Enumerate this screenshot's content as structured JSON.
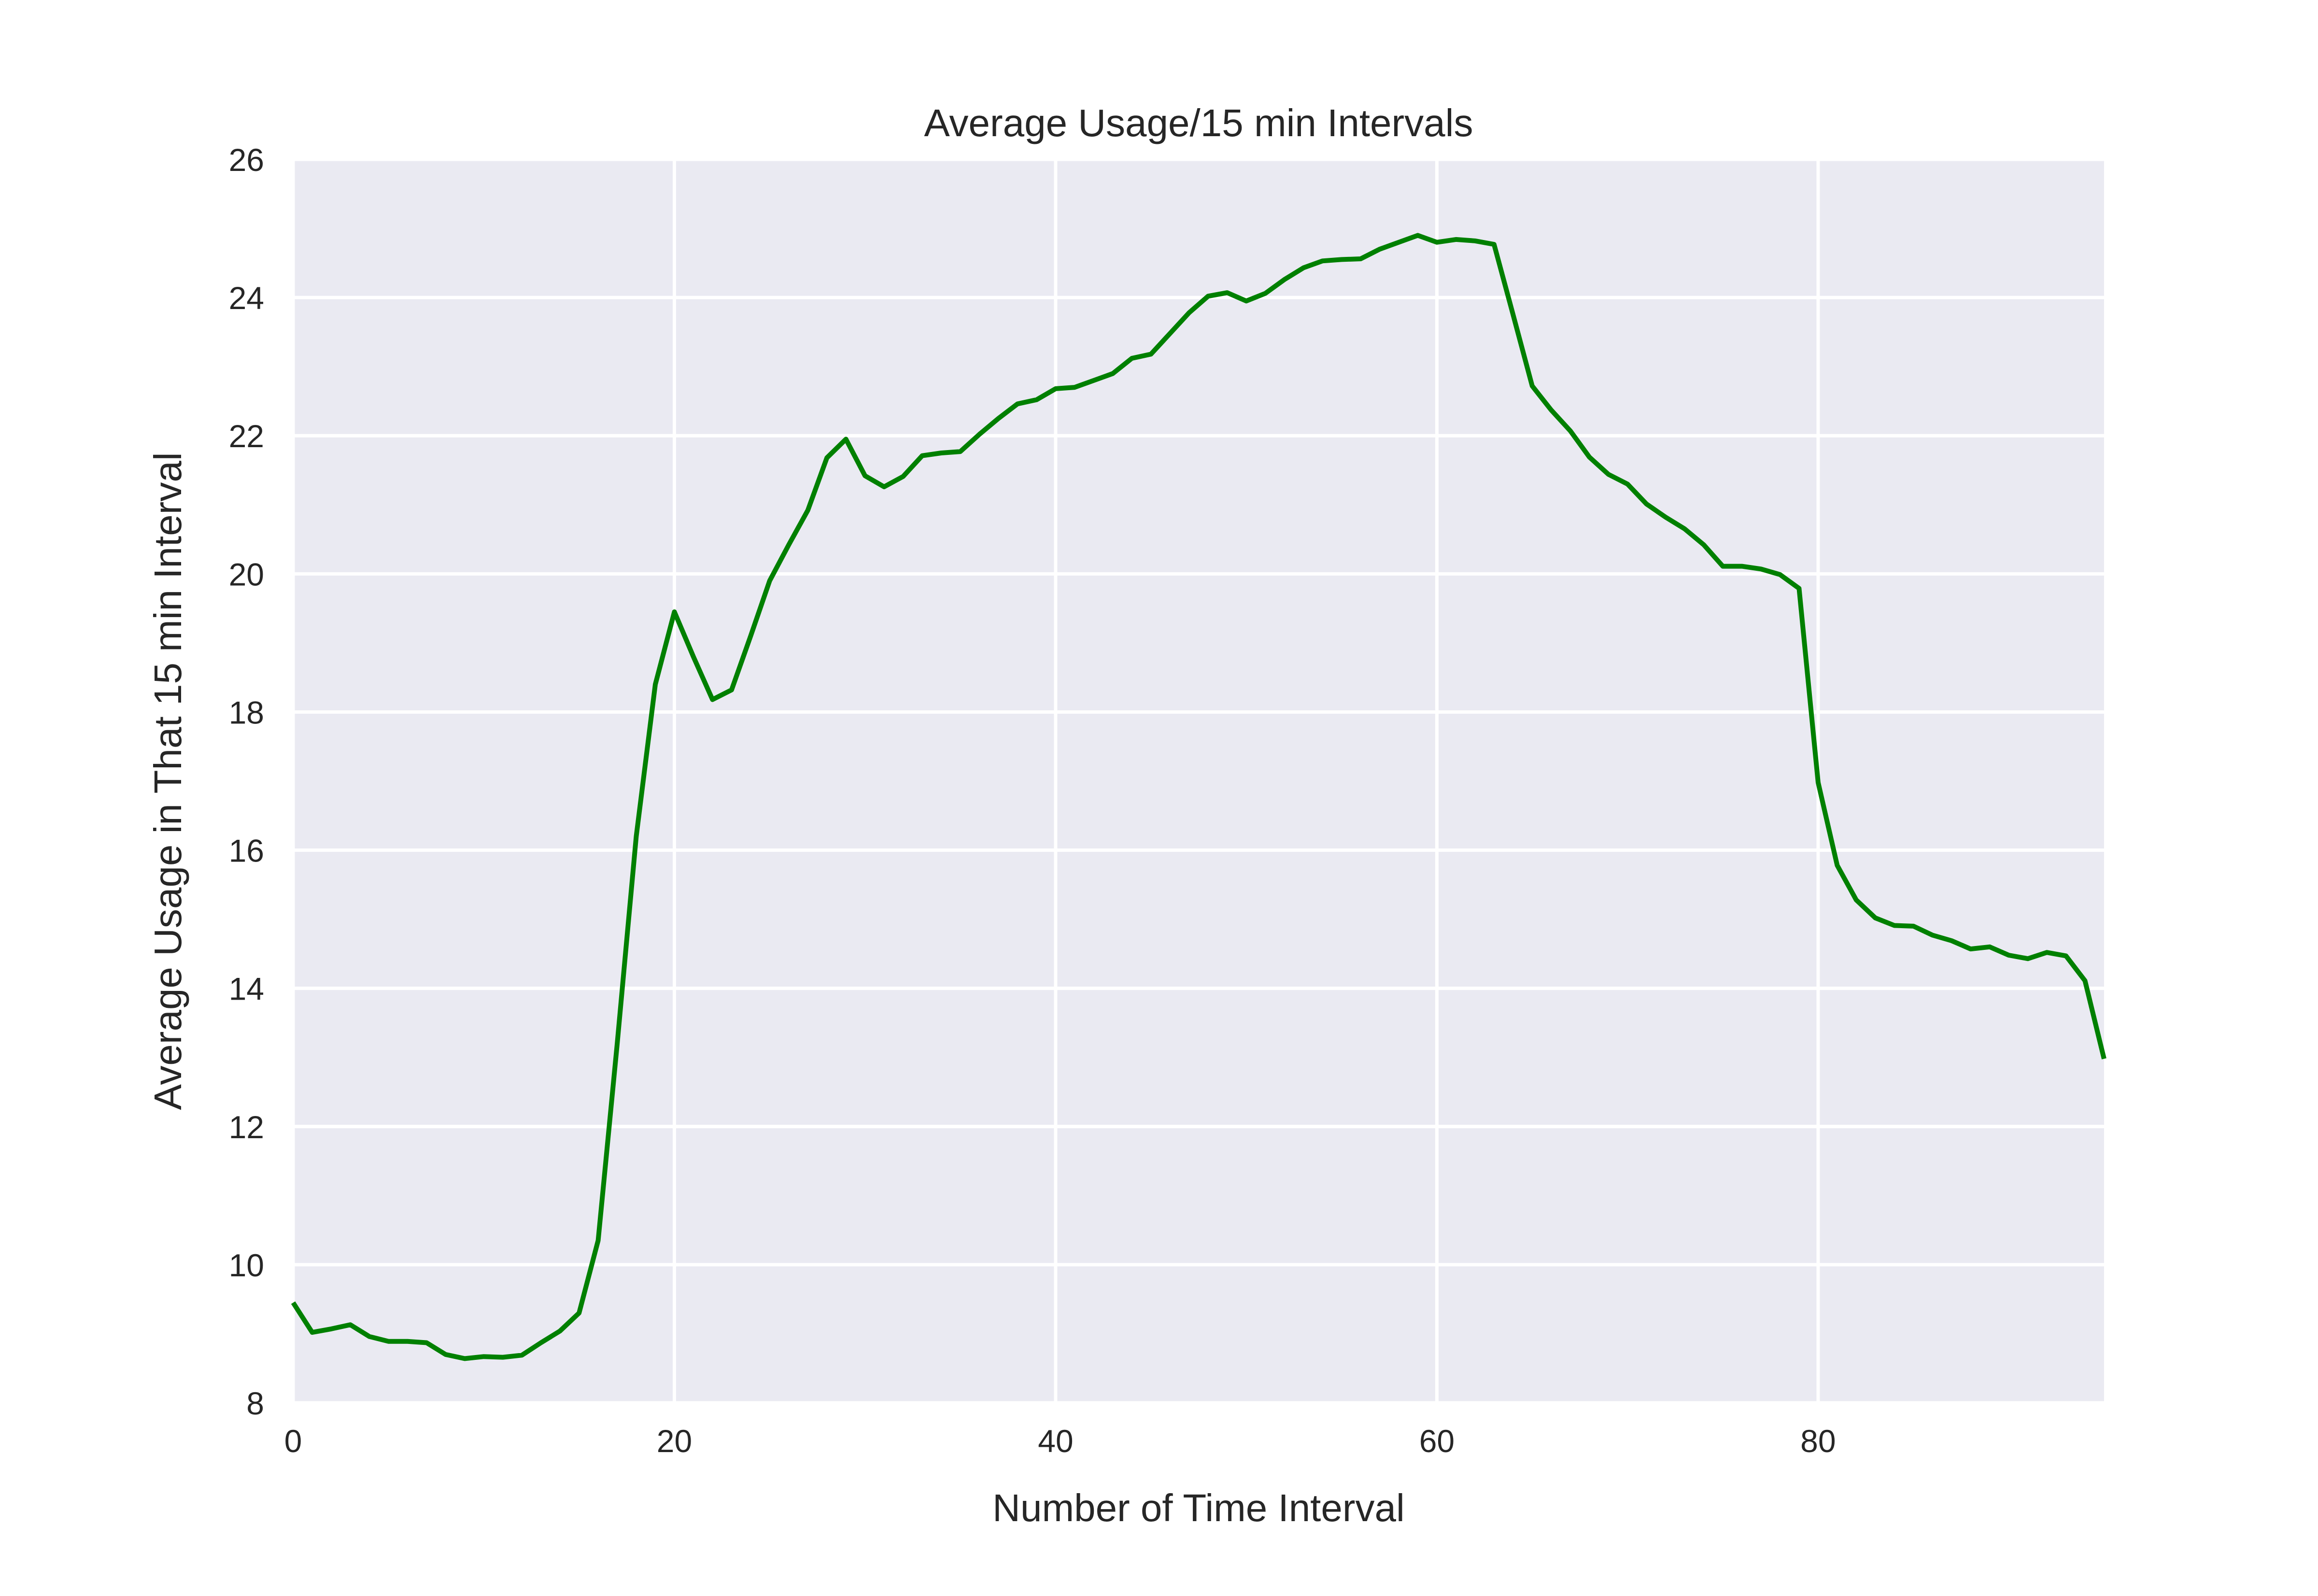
{
  "chart_data": {
    "type": "line",
    "title": "Average Usage/15 min Intervals",
    "xlabel": "Number of Time Interval",
    "ylabel": "Average Usage in That 15 min Interval",
    "xlim": [
      0,
      95
    ],
    "ylim": [
      8,
      26
    ],
    "xticks": [
      0,
      20,
      40,
      60,
      80
    ],
    "yticks": [
      8,
      10,
      12,
      14,
      16,
      18,
      20,
      22,
      24,
      26
    ],
    "grid": true,
    "background_color": "#eaeaf2",
    "grid_color": "#ffffff",
    "series": [
      {
        "color": "#008000",
        "values": [
          9.45,
          9.02,
          9.07,
          9.13,
          8.96,
          8.89,
          8.89,
          8.87,
          8.7,
          8.64,
          8.67,
          8.66,
          8.69,
          8.87,
          9.04,
          9.3,
          10.35,
          13.2,
          16.2,
          18.4,
          19.45,
          18.8,
          18.18,
          18.32,
          19.1,
          19.9,
          20.42,
          20.92,
          21.68,
          21.95,
          21.42,
          21.26,
          21.41,
          21.71,
          21.75,
          21.77,
          22.02,
          22.25,
          22.46,
          22.52,
          22.68,
          22.7,
          22.8,
          22.9,
          23.12,
          23.18,
          23.48,
          23.78,
          24.02,
          24.07,
          23.95,
          24.06,
          24.26,
          24.43,
          24.53,
          24.55,
          24.56,
          24.7,
          24.8,
          24.9,
          24.8,
          24.84,
          24.82,
          24.77,
          23.75,
          22.72,
          22.37,
          22.07,
          21.69,
          21.44,
          21.3,
          21.01,
          20.82,
          20.65,
          20.42,
          20.11,
          20.11,
          20.07,
          19.99,
          19.79,
          16.98,
          15.78,
          15.28,
          15.02,
          14.91,
          14.9,
          14.77,
          14.69,
          14.57,
          14.6,
          14.48,
          14.43,
          14.52,
          14.47,
          14.11,
          12.98
        ]
      }
    ]
  }
}
